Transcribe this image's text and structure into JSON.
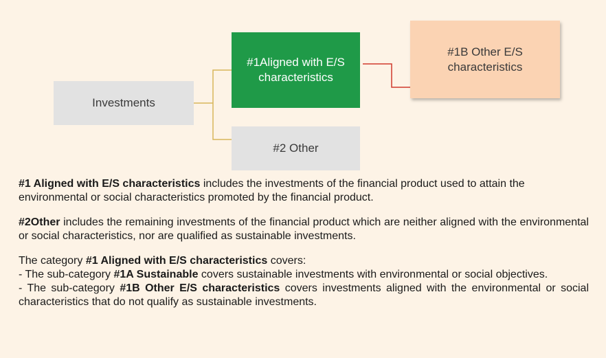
{
  "nodes": [
    {
      "label": "Investments"
    },
    {
      "label": "#1Aligned with E/S characteristics"
    },
    {
      "label": "#1B Other E/S characteristics"
    },
    {
      "label": "#2 Other"
    }
  ],
  "paragraphs": [
    {
      "bold": "#1 Aligned with E/S characteristics",
      "text": "includes the investments of the financial product used to attain the environmental or social characteristics promoted by the financial product."
    },
    {
      "bold": "#2Other",
      "text": "includes the remaining investments of the financial product which are neither aligned with the environmental or social characteristics, nor are qualified as sustainable investments."
    },
    {
      "lead": "The category",
      "bold": "#1 Aligned with E/S characteristics",
      "text": "covers:",
      "items": [
        {
          "lead": "- The sub-category",
          "bold": "#1A Sustainable",
          "text": "covers sustainable investments with environmental or social objectives."
        },
        {
          "lead": "- The sub-category",
          "bold": "#1B Other E/S characteristics",
          "text": "covers investments aligned with the environmental or social characteristics that do not qualify as sustainable investments."
        }
      ]
    }
  ]
}
